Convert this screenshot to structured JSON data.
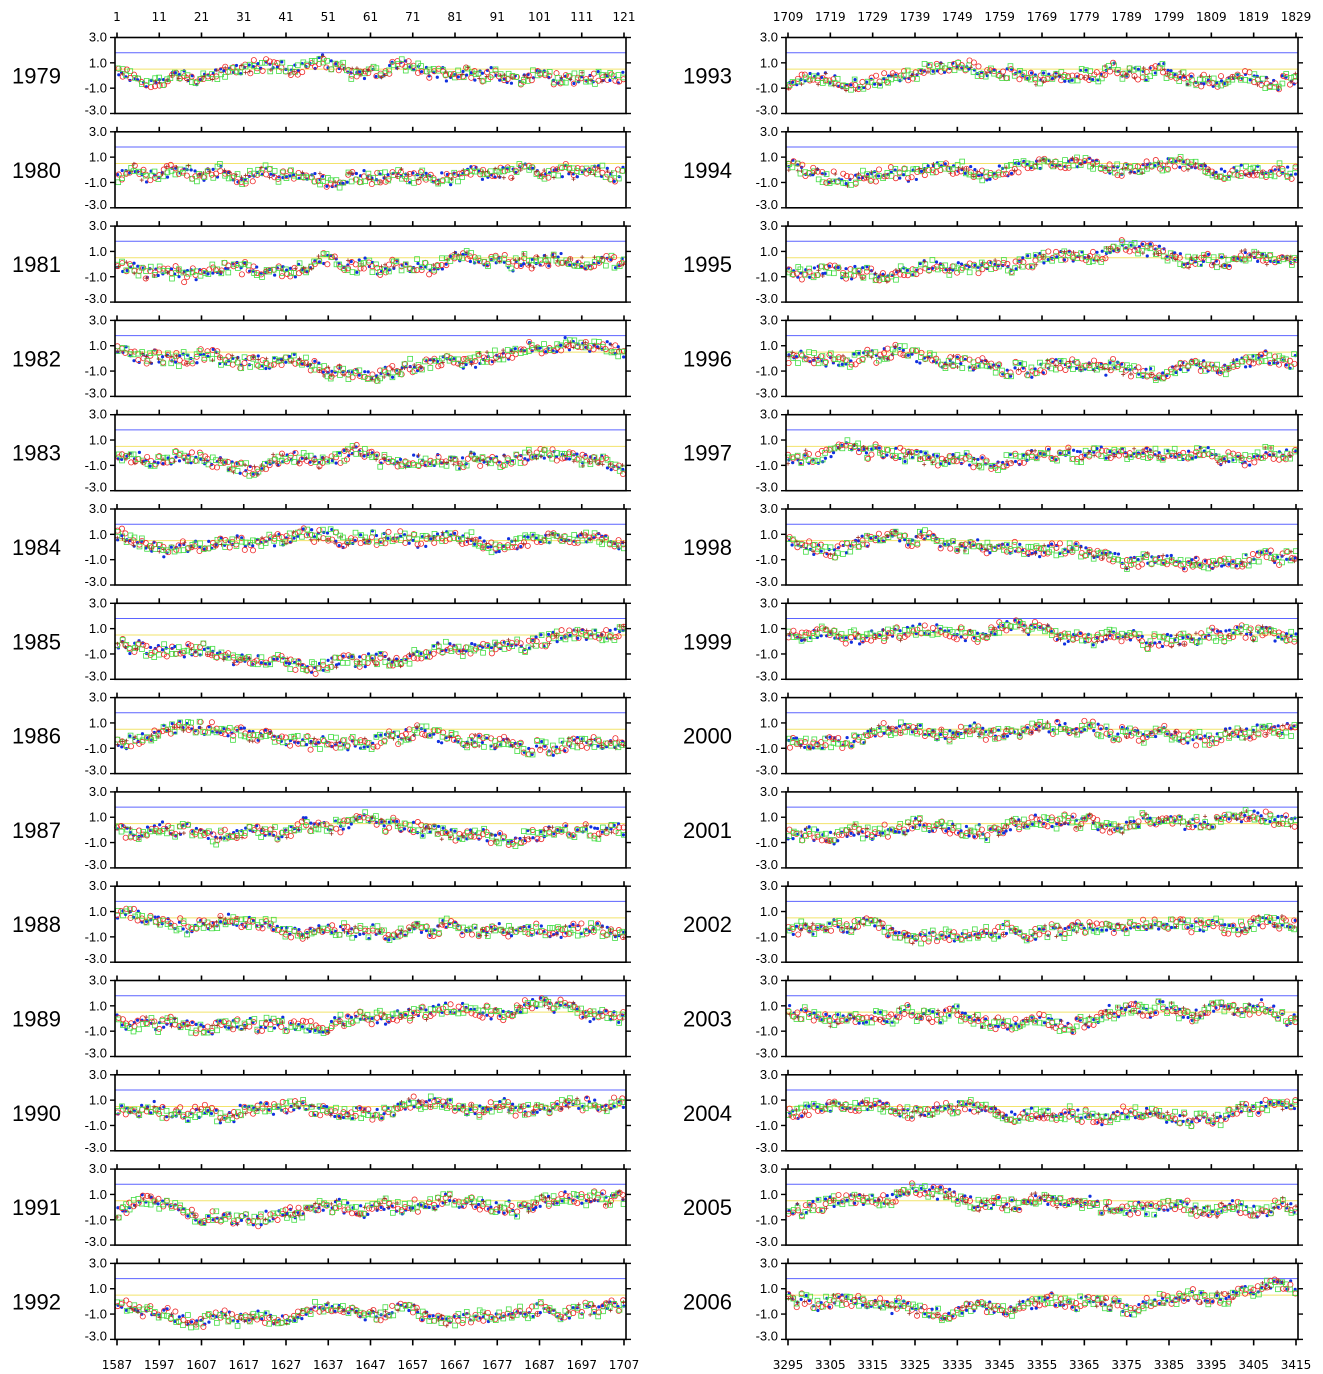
{
  "chart_data": {
    "type": "scatter",
    "y_ticks": [
      "3.0",
      "1.0",
      "-1.0",
      "-3.0"
    ],
    "ylim": [
      -3,
      3
    ],
    "reference_lines": [
      {
        "name": "blue-reference",
        "y": 1.8,
        "color": "#5b63ff"
      },
      {
        "name": "yellow-reference",
        "y": 0.5,
        "color": "#f2e36b"
      }
    ],
    "series": [
      {
        "name": "blue-dots",
        "marker": "dot",
        "color": "#1030e0"
      },
      {
        "name": "red-circles",
        "marker": "circle",
        "color": "#ee2a2a"
      },
      {
        "name": "green-squares",
        "marker": "square",
        "color": "#44dd44"
      },
      {
        "name": "brown-crosses",
        "marker": "cross",
        "color": "#9a3020"
      }
    ],
    "columns": [
      {
        "top_x_ticks": [
          "1",
          "11",
          "21",
          "31",
          "41",
          "51",
          "61",
          "71",
          "81",
          "91",
          "101",
          "111",
          "121"
        ],
        "bottom_x_ticks": [
          "1587",
          "1597",
          "1607",
          "1617",
          "1627",
          "1637",
          "1647",
          "1657",
          "1667",
          "1677",
          "1687",
          "1697",
          "1707"
        ],
        "years": [
          "1979",
          "1980",
          "1981",
          "1982",
          "1983",
          "1984",
          "1985",
          "1986",
          "1987",
          "1988",
          "1989",
          "1990",
          "1991",
          "1992"
        ]
      },
      {
        "top_x_ticks": [
          "1709",
          "1719",
          "1729",
          "1739",
          "1749",
          "1759",
          "1769",
          "1779",
          "1789",
          "1799",
          "1809",
          "1819",
          "1829"
        ],
        "bottom_x_ticks": [
          "3295",
          "3305",
          "3315",
          "3325",
          "3335",
          "3345",
          "3355",
          "3365",
          "3375",
          "3385",
          "3395",
          "3405",
          "3415"
        ],
        "years": [
          "1993",
          "1994",
          "1995",
          "1996",
          "1997",
          "1998",
          "1999",
          "2000",
          "2001",
          "2002",
          "2003",
          "2004",
          "2005",
          "2006"
        ]
      }
    ]
  }
}
